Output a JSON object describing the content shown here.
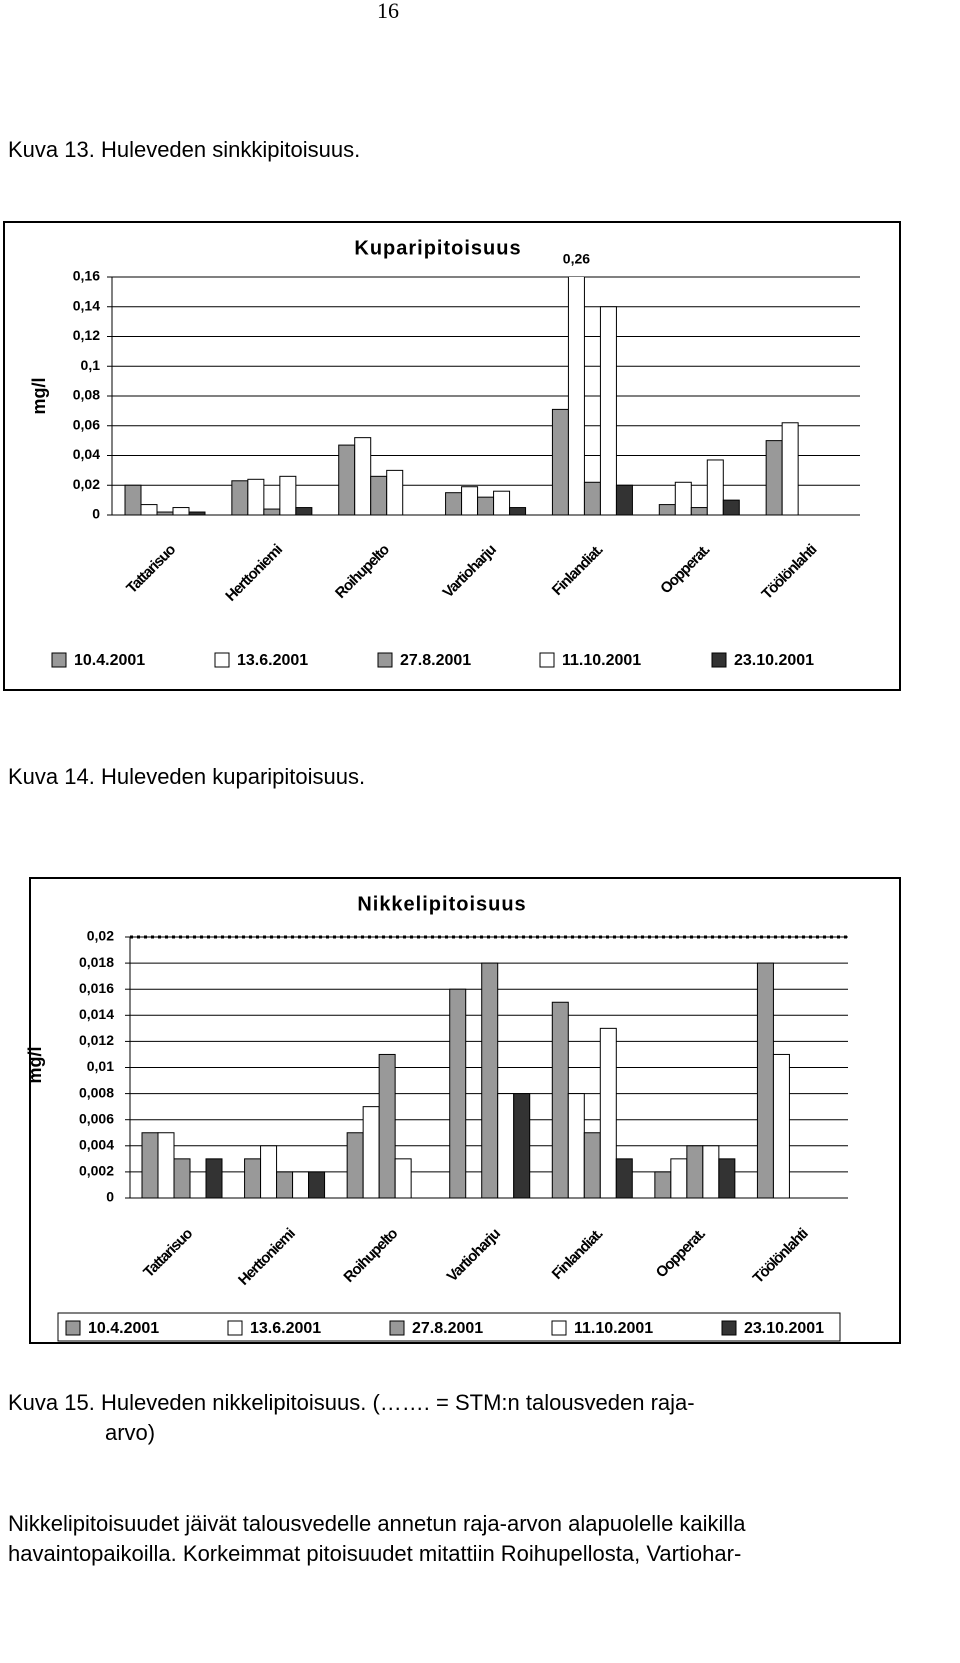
{
  "page_number": "16",
  "captions": [
    "Kuva 13. Huleveden sinkkipitoisuus.",
    "Kuva 14. Huleveden kuparipitoisuus."
  ],
  "caption_15": [
    "Kuva 15. Huleveden nikkelipitoisuus. (……. = STM:n talousveden raja-",
    "arvo)"
  ],
  "paragraph": [
    "Nikkelipitoisuudet jäivät talousvedelle annetun raja-arvon alapuolelle kaikilla",
    "havaintopaikoilla. Korkeimmat pitoisuudet mitattiin Roihupellosta, Vartiohar-"
  ],
  "chart_data": [
    {
      "type": "bar",
      "title": "Kuparipitoisuus",
      "y_label": "mg/l",
      "categories": [
        "Tattarisuo",
        "Herttoniemi",
        "Roihupelto",
        "Vartioharju",
        "Finlandiat.",
        "Oopperat.",
        "Töölönlahti"
      ],
      "series": [
        {
          "name": "10.4.2001",
          "color": "#999999",
          "values": [
            0.02,
            0.023,
            0.047,
            0.015,
            0.071,
            0.007,
            0.05
          ]
        },
        {
          "name": "13.6.2001",
          "color": "#ffffff",
          "values": [
            0.007,
            0.024,
            0.052,
            0.019,
            0.26,
            0.022,
            0.062
          ],
          "value_labels": [
            null,
            null,
            null,
            null,
            "0,26",
            null,
            null
          ]
        },
        {
          "name": "27.8.2001",
          "color": "#999999",
          "values": [
            0.002,
            0.004,
            0.026,
            0.012,
            0.022,
            0.005,
            null
          ]
        },
        {
          "name": "11.10.2001",
          "color": "#ffffff",
          "values": [
            0.005,
            0.026,
            0.03,
            0.016,
            0.14,
            0.037,
            null
          ]
        },
        {
          "name": "23.10.2001",
          "color": "#333333",
          "values": [
            0.002,
            0.005,
            null,
            0.005,
            0.02,
            0.01,
            null
          ]
        }
      ],
      "ylim": [
        0,
        0.16
      ],
      "yticks": [
        0,
        {
          "value": 0.02,
          "label": "0,02"
        },
        {
          "value": 0.04,
          "label": "0,04"
        },
        {
          "value": 0.06,
          "label": "0,06"
        },
        {
          "value": 0.08,
          "label": "0,08"
        },
        {
          "value": 0.1,
          "label": "0,1"
        },
        {
          "value": 0.12,
          "label": "0,12"
        },
        {
          "value": 0.14,
          "label": "0,14"
        },
        {
          "value": 0.16,
          "label": "0,16"
        }
      ],
      "grid": true,
      "legend": "bottom"
    },
    {
      "type": "bar",
      "title": "Nikkelipitoisuus",
      "y_label": "mg/l",
      "categories": [
        "Tattarisuo",
        "Herttoniemi",
        "Roihupelto",
        "Vartioharju",
        "Finlandiat.",
        "Oopperat.",
        "Töölönlahti"
      ],
      "series": [
        {
          "name": "10.4.2001",
          "color": "#999999",
          "values": [
            0.005,
            0.003,
            0.005,
            0.016,
            0.015,
            0.002,
            0.018
          ]
        },
        {
          "name": "13.6.2001",
          "color": "#ffffff",
          "values": [
            0.005,
            0.004,
            0.007,
            null,
            0.008,
            0.003,
            0.011
          ]
        },
        {
          "name": "27.8.2001",
          "color": "#999999",
          "values": [
            0.003,
            0.002,
            0.011,
            0.018,
            0.005,
            0.004,
            null
          ]
        },
        {
          "name": "11.10.2001",
          "color": "#ffffff",
          "values": [
            null,
            0.002,
            0.003,
            0.008,
            0.013,
            0.004,
            null
          ]
        },
        {
          "name": "23.10.2001",
          "color": "#333333",
          "values": [
            0.003,
            0.002,
            null,
            0.008,
            0.003,
            0.003,
            null
          ]
        }
      ],
      "ylim": [
        0,
        0.02
      ],
      "yticks": [
        0,
        {
          "value": 0.002,
          "label": "0,002"
        },
        {
          "value": 0.004,
          "label": "0,004"
        },
        {
          "value": 0.006,
          "label": "0,006"
        },
        {
          "value": 0.008,
          "label": "0,008"
        },
        {
          "value": 0.01,
          "label": "0,01"
        },
        {
          "value": 0.012,
          "label": "0,012"
        },
        {
          "value": 0.014,
          "label": "0,014"
        },
        {
          "value": 0.016,
          "label": "0,016"
        },
        {
          "value": 0.018,
          "label": "0,018"
        },
        {
          "value": 0.02,
          "label": "0,02"
        }
      ],
      "reference_line": 0.02,
      "grid": true,
      "legend": "bottom"
    }
  ]
}
